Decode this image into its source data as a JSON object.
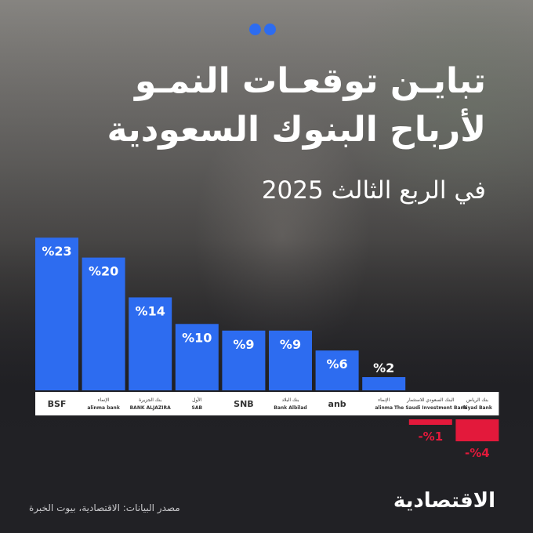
{
  "header": {
    "title_line1": "تبايـن توقعـات النمـو",
    "title_line2": "لأرباح البنوك السعودية",
    "subtitle": "في الربع الثالث 2025"
  },
  "footer": {
    "source": "مصدر البيانات: الاقتصادية، بيوت الخبرة",
    "logo": "الاقتصادية"
  },
  "colors": {
    "positive": "#2d6cf0",
    "negative": "#e3193b",
    "accent": "#2d6cf0",
    "label_band": "#ffffff"
  },
  "chart_data": {
    "type": "bar",
    "categories": [
      "BSF",
      "الإنماء alinma",
      "بنك الجزيرة BANK ALJAZIRA",
      "الأول SAB",
      "SNB",
      "بنك البلاد Bank Albilad",
      "anb",
      "alinma",
      "البنك السعودي للاستثمار The Saudi Investment Bank",
      "بنك الرياض Riyad Bank"
    ],
    "values": [
      23,
      20,
      14,
      10,
      9,
      9,
      6,
      2,
      -1,
      -4
    ],
    "value_labels": [
      "%23",
      "%20",
      "%14",
      "%10",
      "%9",
      "%9",
      "%6",
      "%2",
      "-%1",
      "-%4"
    ],
    "category_labels": [
      "BSF",
      "alinma bank",
      "BANK ALJAZIRA",
      "SAB",
      "SNB",
      "Bank Albilad",
      "anb",
      "alinma",
      "The Saudi Investment Bank",
      "Riyad Bank"
    ],
    "category_labels_ar": [
      "",
      "الإنماء",
      "بنك الجزيرة",
      "الأول",
      "",
      "بنك البلاد",
      "",
      "الإنماء",
      "البنك السعودي للاستثمار",
      "بنك الرياض"
    ],
    "ylim": [
      -4,
      23
    ],
    "grid": false,
    "legend": "none"
  }
}
